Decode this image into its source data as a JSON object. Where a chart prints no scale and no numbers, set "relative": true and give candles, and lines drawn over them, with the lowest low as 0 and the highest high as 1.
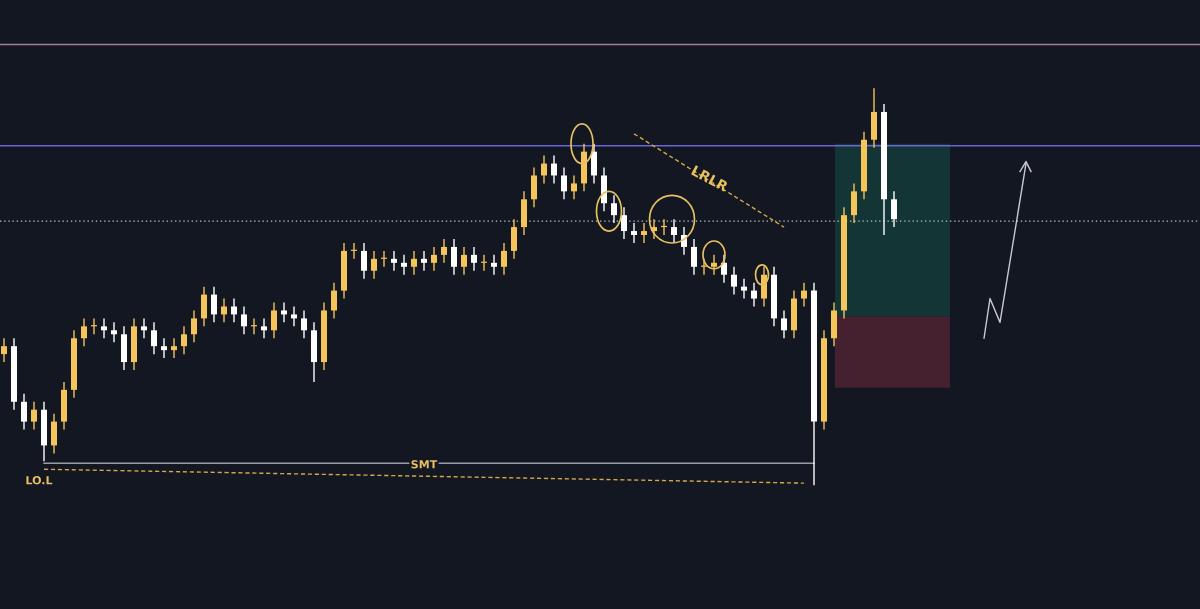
{
  "chart_data": {
    "type": "candlestick",
    "relative": true,
    "legend": false,
    "categories": [
      null,
      null,
      null,
      null,
      null,
      null,
      null,
      null,
      null,
      null,
      null,
      null,
      null,
      null,
      null,
      null,
      null,
      null,
      null,
      null,
      null,
      null,
      null,
      null,
      null,
      null,
      null,
      null,
      null,
      null,
      null,
      null,
      null,
      null,
      null,
      null,
      null,
      null,
      null,
      null,
      null,
      null,
      null,
      null,
      null,
      null,
      null,
      null,
      null,
      null,
      null,
      null,
      null,
      null,
      null,
      null,
      null,
      null,
      null,
      null,
      null,
      null,
      null,
      null,
      null,
      null,
      null,
      null,
      null,
      null,
      null,
      null,
      null,
      null,
      null,
      null,
      null,
      null,
      null,
      null,
      null,
      null,
      null,
      null,
      null,
      null,
      null,
      null,
      null,
      null
    ],
    "ohlc": [
      [
        0.33,
        0.37,
        0.31,
        0.35
      ],
      [
        0.35,
        0.37,
        0.19,
        0.21
      ],
      [
        0.21,
        0.23,
        0.14,
        0.16
      ],
      [
        0.16,
        0.21,
        0.14,
        0.19
      ],
      [
        0.19,
        0.21,
        0.06,
        0.1
      ],
      [
        0.1,
        0.18,
        0.08,
        0.16
      ],
      [
        0.16,
        0.26,
        0.14,
        0.24
      ],
      [
        0.24,
        0.39,
        0.22,
        0.37
      ],
      [
        0.37,
        0.42,
        0.35,
        0.4
      ],
      [
        0.4,
        0.42,
        0.38,
        0.4
      ],
      [
        0.4,
        0.42,
        0.37,
        0.39
      ],
      [
        0.39,
        0.41,
        0.36,
        0.38
      ],
      [
        0.38,
        0.4,
        0.29,
        0.31
      ],
      [
        0.31,
        0.42,
        0.29,
        0.4
      ],
      [
        0.4,
        0.42,
        0.37,
        0.39
      ],
      [
        0.39,
        0.41,
        0.33,
        0.35
      ],
      [
        0.35,
        0.37,
        0.32,
        0.34
      ],
      [
        0.34,
        0.37,
        0.32,
        0.35
      ],
      [
        0.35,
        0.4,
        0.33,
        0.38
      ],
      [
        0.38,
        0.44,
        0.36,
        0.42
      ],
      [
        0.42,
        0.5,
        0.4,
        0.48
      ],
      [
        0.48,
        0.5,
        0.41,
        0.43
      ],
      [
        0.43,
        0.47,
        0.41,
        0.45
      ],
      [
        0.45,
        0.47,
        0.41,
        0.43
      ],
      [
        0.43,
        0.45,
        0.38,
        0.4
      ],
      [
        0.4,
        0.42,
        0.38,
        0.4
      ],
      [
        0.4,
        0.42,
        0.37,
        0.39
      ],
      [
        0.39,
        0.46,
        0.37,
        0.44
      ],
      [
        0.44,
        0.46,
        0.41,
        0.43
      ],
      [
        0.43,
        0.45,
        0.4,
        0.42
      ],
      [
        0.42,
        0.44,
        0.37,
        0.39
      ],
      [
        0.39,
        0.41,
        0.26,
        0.31
      ],
      [
        0.31,
        0.46,
        0.29,
        0.44
      ],
      [
        0.44,
        0.51,
        0.42,
        0.49
      ],
      [
        0.49,
        0.61,
        0.47,
        0.59
      ],
      [
        0.59,
        0.61,
        0.57,
        0.59
      ],
      [
        0.59,
        0.61,
        0.52,
        0.54
      ],
      [
        0.54,
        0.59,
        0.52,
        0.57
      ],
      [
        0.57,
        0.59,
        0.55,
        0.57
      ],
      [
        0.57,
        0.59,
        0.54,
        0.56
      ],
      [
        0.56,
        0.58,
        0.53,
        0.55
      ],
      [
        0.55,
        0.59,
        0.53,
        0.57
      ],
      [
        0.57,
        0.59,
        0.54,
        0.56
      ],
      [
        0.56,
        0.6,
        0.54,
        0.58
      ],
      [
        0.58,
        0.62,
        0.56,
        0.6
      ],
      [
        0.6,
        0.62,
        0.53,
        0.55
      ],
      [
        0.55,
        0.6,
        0.53,
        0.58
      ],
      [
        0.58,
        0.6,
        0.54,
        0.56
      ],
      [
        0.56,
        0.58,
        0.54,
        0.56
      ],
      [
        0.56,
        0.58,
        0.53,
        0.55
      ],
      [
        0.55,
        0.61,
        0.53,
        0.59
      ],
      [
        0.59,
        0.67,
        0.57,
        0.65
      ],
      [
        0.65,
        0.74,
        0.63,
        0.72
      ],
      [
        0.72,
        0.8,
        0.7,
        0.78
      ],
      [
        0.78,
        0.83,
        0.76,
        0.81
      ],
      [
        0.81,
        0.83,
        0.76,
        0.78
      ],
      [
        0.78,
        0.8,
        0.72,
        0.74
      ],
      [
        0.74,
        0.78,
        0.72,
        0.76
      ],
      [
        0.76,
        0.86,
        0.74,
        0.84
      ],
      [
        0.84,
        0.86,
        0.76,
        0.78
      ],
      [
        0.78,
        0.8,
        0.69,
        0.71
      ],
      [
        0.71,
        0.73,
        0.66,
        0.68
      ],
      [
        0.68,
        0.7,
        0.62,
        0.64
      ],
      [
        0.64,
        0.66,
        0.61,
        0.63
      ],
      [
        0.63,
        0.66,
        0.61,
        0.64
      ],
      [
        0.64,
        0.67,
        0.62,
        0.65
      ],
      [
        0.65,
        0.67,
        0.63,
        0.65
      ],
      [
        0.65,
        0.67,
        0.61,
        0.63
      ],
      [
        0.63,
        0.65,
        0.58,
        0.6
      ],
      [
        0.6,
        0.62,
        0.53,
        0.55
      ],
      [
        0.55,
        0.57,
        0.53,
        0.55
      ],
      [
        0.55,
        0.58,
        0.53,
        0.56
      ],
      [
        0.56,
        0.58,
        0.51,
        0.53
      ],
      [
        0.53,
        0.55,
        0.48,
        0.5
      ],
      [
        0.5,
        0.52,
        0.47,
        0.49
      ],
      [
        0.49,
        0.51,
        0.45,
        0.47
      ],
      [
        0.47,
        0.55,
        0.45,
        0.53
      ],
      [
        0.53,
        0.55,
        0.4,
        0.42
      ],
      [
        0.42,
        0.44,
        0.37,
        0.39
      ],
      [
        0.39,
        0.49,
        0.37,
        0.47
      ],
      [
        0.47,
        0.51,
        0.45,
        0.49
      ],
      [
        0.49,
        0.51,
        0,
        0.16
      ],
      [
        0.16,
        0.39,
        0.14,
        0.37
      ],
      [
        0.37,
        0.46,
        0.35,
        0.44
      ],
      [
        0.44,
        0.7,
        0.42,
        0.68
      ],
      [
        0.68,
        0.76,
        0.66,
        0.74
      ],
      [
        0.74,
        0.89,
        0.72,
        0.87
      ],
      [
        0.87,
        1,
        0.85,
        0.94
      ],
      [
        0.94,
        0.96,
        0.63,
        0.72
      ],
      [
        0.72,
        0.74,
        0.65,
        0.67
      ]
    ],
    "colors": [
      "#f5c55a",
      "#ffffff",
      "#ffffff",
      "#f5c55a",
      "#ffffff",
      "#f5c55a",
      "#f5c55a",
      "#f5c55a",
      "#f5c55a",
      "#f5c55a",
      "#ffffff",
      "#ffffff",
      "#ffffff",
      "#f5c55a",
      "#ffffff",
      "#ffffff",
      "#ffffff",
      "#f5c55a",
      "#f5c55a",
      "#f5c55a",
      "#f5c55a",
      "#ffffff",
      "#f5c55a",
      "#ffffff",
      "#ffffff",
      "#f5c55a",
      "#ffffff",
      "#f5c55a",
      "#ffffff",
      "#ffffff",
      "#ffffff",
      "#ffffff",
      "#f5c55a",
      "#f5c55a",
      "#f5c55a",
      "#f5c55a",
      "#ffffff",
      "#f5c55a",
      "#f5c55a",
      "#ffffff",
      "#ffffff",
      "#f5c55a",
      "#ffffff",
      "#f5c55a",
      "#f5c55a",
      "#ffffff",
      "#f5c55a",
      "#ffffff",
      "#f5c55a",
      "#ffffff",
      "#f5c55a",
      "#f5c55a",
      "#f5c55a",
      "#f5c55a",
      "#f5c55a",
      "#ffffff",
      "#ffffff",
      "#f5c55a",
      "#f5c55a",
      "#ffffff",
      "#ffffff",
      "#ffffff",
      "#ffffff",
      "#ffffff",
      "#f5c55a",
      "#f5c55a",
      "#f5c55a",
      "#ffffff",
      "#ffffff",
      "#ffffff",
      "#f5c55a",
      "#f5c55a",
      "#ffffff",
      "#ffffff",
      "#ffffff",
      "#ffffff",
      "#f5c55a",
      "#ffffff",
      "#ffffff",
      "#f5c55a",
      "#f5c55a",
      "#ffffff",
      "#f5c55a",
      "#f5c55a",
      "#f5c55a",
      "#f5c55a",
      "#f5c55a",
      "#f5c55a",
      "#ffffff",
      "#ffffff"
    ],
    "series": [
      {
        "type": "line",
        "values": [
          null,
          null,
          null,
          null,
          0.055,
          null,
          null,
          null,
          null,
          null,
          null,
          null,
          null,
          null,
          null,
          null,
          null,
          null,
          null,
          null,
          null,
          null,
          null,
          null,
          null,
          null,
          null,
          null,
          null,
          null,
          null,
          null,
          null,
          null,
          null,
          null,
          null,
          null,
          null,
          null,
          null,
          null,
          null,
          null,
          null,
          null,
          null,
          null,
          null,
          null,
          null,
          null,
          null,
          null,
          null,
          null,
          null,
          null,
          null,
          null,
          null,
          null,
          null,
          null,
          null,
          null,
          null,
          null,
          null,
          null,
          null,
          null,
          null,
          null,
          null,
          null,
          null,
          null,
          null,
          null,
          null,
          0.055,
          null,
          null,
          null,
          null,
          null,
          null,
          null,
          null
        ],
        "color": "#9a9ca4",
        "line_style": "solid"
      },
      {
        "type": "line",
        "values": [
          null,
          null,
          null,
          null,
          0.04,
          null,
          null,
          null,
          null,
          null,
          null,
          null,
          null,
          null,
          null,
          null,
          null,
          null,
          null,
          null,
          null,
          null,
          null,
          null,
          null,
          null,
          null,
          null,
          null,
          null,
          null,
          null,
          null,
          null,
          null,
          null,
          null,
          null,
          null,
          null,
          null,
          null,
          null,
          null,
          null,
          null,
          null,
          null,
          null,
          null,
          null,
          null,
          null,
          null,
          null,
          null,
          null,
          null,
          null,
          null,
          null,
          null,
          null,
          null,
          null,
          null,
          null,
          null,
          null,
          null,
          null,
          null,
          null,
          null,
          null,
          null,
          null,
          null,
          null,
          null,
          0.005,
          null,
          null,
          null,
          null,
          null,
          null,
          null,
          null,
          null
        ],
        "color": "#d4a84a",
        "line_style": "dashed"
      },
      {
        "type": "line",
        "values": [
          null,
          null,
          null,
          null,
          null,
          null,
          null,
          null,
          null,
          null,
          null,
          null,
          null,
          null,
          null,
          null,
          null,
          null,
          null,
          null,
          null,
          null,
          null,
          null,
          null,
          null,
          null,
          null,
          null,
          null,
          null,
          null,
          null,
          null,
          null,
          null,
          null,
          null,
          null,
          null,
          null,
          null,
          null,
          null,
          null,
          null,
          null,
          null,
          null,
          null,
          null,
          null,
          null,
          null,
          null,
          null,
          null,
          null,
          null,
          null,
          null,
          null,
          null,
          0.885,
          null,
          null,
          null,
          null,
          null,
          null,
          null,
          null,
          null,
          null,
          null,
          null,
          null,
          null,
          0.65,
          null,
          null,
          null,
          null,
          null,
          null,
          null,
          null,
          null,
          null,
          null
        ],
        "color": "#d4a84a",
        "line_style": "dashed"
      }
    ],
    "ref_lines": [
      {
        "axis": "y",
        "value": 1.11,
        "color": "#a87a98",
        "line_style": "solid"
      },
      {
        "axis": "y",
        "value": 0.855,
        "color": "#6a66d8",
        "line_style": "solid"
      },
      {
        "axis": "y",
        "value": 0.665,
        "color": "#b8bcc8",
        "line_style": "dotted"
      }
    ],
    "bands": [
      {
        "axis": "y",
        "from": 0.425,
        "to": 0.86,
        "color": "#143535"
      },
      {
        "axis": "y",
        "from": 0.245,
        "to": 0.425,
        "color": "#45202e"
      }
    ],
    "annotations": [
      "LRLR",
      "SMT",
      "LO.L"
    ]
  }
}
